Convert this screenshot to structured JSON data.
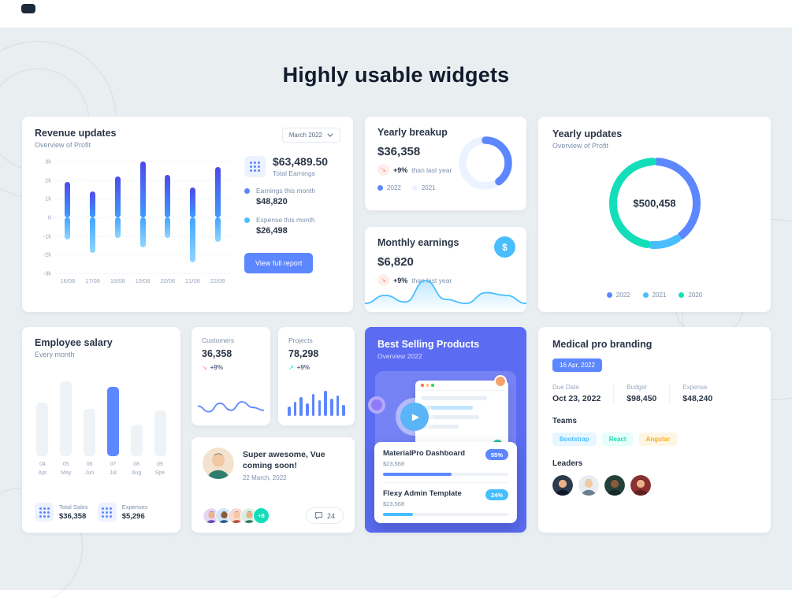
{
  "page": {
    "title": "Highly usable widgets"
  },
  "colors": {
    "primary": "#5D87FF",
    "secondary": "#49BEFF",
    "success": "#13DEB9",
    "warning": "#FFAE1F",
    "error": "#FA896B",
    "best_selling_bg": "#5B6CF2",
    "page_bg": "#E9EEF1"
  },
  "icons": {
    "dollar": "$",
    "trend_down": "↘",
    "trend_up": "↗",
    "play": "▶"
  },
  "revenue_updates": {
    "title": "Revenue updates",
    "subtitle": "Overview of Profit",
    "period_select": "March 2022",
    "total": {
      "value": "$63,489.50",
      "label": "Total Earnings"
    },
    "stats": [
      {
        "label": "Earnings this month",
        "value": "$48,820",
        "dot": "#5D87FF"
      },
      {
        "label": "Expense this month",
        "value": "$26,498",
        "dot": "#49BEFF"
      }
    ],
    "cta": "View full report",
    "chart": {
      "type": "bar",
      "categories": [
        "16/08",
        "17/08",
        "18/08",
        "19/08",
        "20/08",
        "21/08",
        "22/08"
      ],
      "y_ticks": [
        "3k",
        "2k",
        "1k",
        "0",
        "-1k",
        "-2k",
        "-3k"
      ],
      "ylim": [
        -3000,
        3000
      ],
      "series": [
        {
          "name": "Earnings this month",
          "values": [
            1900,
            1400,
            2200,
            3000,
            2300,
            1600,
            2700
          ]
        },
        {
          "name": "Expense this month",
          "values": [
            -1200,
            -1900,
            -1100,
            -1600,
            -1100,
            -2400,
            -1300
          ]
        }
      ]
    }
  },
  "yearly_breakup": {
    "title": "Yearly breakup",
    "value": "$36,358",
    "delta": "+9%",
    "delta_note": "than last year",
    "legend": [
      {
        "label": "2022",
        "color": "#5D87FF"
      },
      {
        "label": "2021",
        "color": "#ECF2FF"
      }
    ],
    "donut": {
      "percent": 40,
      "color": "#5D87FF",
      "track": "#ECF2FF"
    }
  },
  "monthly_earnings": {
    "title": "Monthly earnings",
    "value": "$6,820",
    "delta": "+9%",
    "delta_note": "than last year",
    "spark": [
      8,
      20,
      10,
      42,
      14,
      8,
      24,
      20,
      8
    ]
  },
  "yearly_updates": {
    "title": "Yearly updates",
    "subtitle": "Overview of Profit",
    "center_value": "$500,458",
    "segments": [
      {
        "label": "2022",
        "percent": 40,
        "color": "#5D87FF"
      },
      {
        "label": "2021",
        "percent": 12,
        "color": "#49BEFF"
      },
      {
        "label": "2020",
        "percent": 48,
        "color": "#13DEB9"
      }
    ]
  },
  "employee_salary": {
    "title": "Employee salary",
    "subtitle": "Every month",
    "categories": [
      "04 Apr",
      "05 May",
      "06 Jun",
      "07 Jul",
      "08 Aug",
      "09 Spe"
    ],
    "values": [
      68,
      95,
      60,
      88,
      40,
      58
    ],
    "highlight_index": 3,
    "stats": [
      {
        "label": "Total Sales",
        "value": "$36,358"
      },
      {
        "label": "Expenses",
        "value": "$5,296"
      }
    ]
  },
  "customers": {
    "title": "Customers",
    "value": "36,358",
    "delta": "+9%",
    "spark": [
      14,
      6,
      18,
      8,
      20,
      12,
      8
    ]
  },
  "projects": {
    "title": "Projects",
    "value": "78,298",
    "delta": "+9%",
    "bars": [
      12,
      18,
      24,
      16,
      28,
      20,
      32,
      22,
      26,
      14
    ]
  },
  "announcement": {
    "title": "Super awesome, Vue coming soon!",
    "date": "22 March, 2022",
    "more_badge": "+8",
    "comment_count": "24",
    "author_avatar": {
      "bg": "#F3E2CE",
      "skin": "#F3C9A4",
      "hair": "#553A23",
      "shirt": "#2F7D6D"
    },
    "team_avatars": [
      {
        "bg": "#E4D5F5",
        "skin": "#EEB186",
        "hair": "#2B2118",
        "shirt": "#6C4AB0"
      },
      {
        "bg": "#CFE6F8",
        "skin": "#8A5A3B",
        "hair": "#101820",
        "shirt": "#2C5E8A"
      },
      {
        "bg": "#F8D8CF",
        "skin": "#F3C9A4",
        "hair": "#6B4226",
        "shirt": "#B2543F"
      },
      {
        "bg": "#D8F0E2",
        "skin": "#EEB186",
        "hair": "#3A2A1A",
        "shirt": "#2F7D6D"
      }
    ]
  },
  "best_selling": {
    "title": "Best Selling Products",
    "subtitle": "Overview 2022",
    "products": [
      {
        "name": "MaterialPro Dashboard",
        "value": "$23,568",
        "percent_label": "55%",
        "percent": 55,
        "color": "#5D87FF"
      },
      {
        "name": "Flexy Admin Template",
        "value": "$23,568",
        "percent_label": "24%",
        "percent": 24,
        "color": "#49BEFF"
      }
    ]
  },
  "medical": {
    "title": "Medical pro branding",
    "date_badge": "16 Apr, 2022",
    "fields": [
      {
        "label": "Due Date",
        "value": "Oct 23, 2022"
      },
      {
        "label": "Budget",
        "value": "$98,450"
      },
      {
        "label": "Expense",
        "value": "$48,240"
      }
    ],
    "teams_label": "Teams",
    "teams": [
      {
        "name": "Bootstrap",
        "fg": "#49BEFF",
        "bg": "#E8F7FF"
      },
      {
        "name": "React",
        "fg": "#13DEB9",
        "bg": "#E6FFFA"
      },
      {
        "name": "Angular",
        "fg": "#FFAE1F",
        "bg": "#FEF5E5"
      }
    ],
    "leaders_label": "Leaders",
    "leaders": [
      {
        "bg": "#2A3A4C",
        "skin": "#EEB186",
        "hair": "#17202C",
        "shirt": "#101A26"
      },
      {
        "bg": "#E8EDF2",
        "skin": "#F3C9A4",
        "hair": "#D8A558",
        "shirt": "#6A7E92"
      },
      {
        "bg": "#23413A",
        "skin": "#8A5A3B",
        "hair": "#0F1F1A",
        "shirt": "#152A24"
      },
      {
        "bg": "#8A3030",
        "skin": "#EEB186",
        "hair": "#241812",
        "shirt": "#5E2020"
      }
    ]
  }
}
